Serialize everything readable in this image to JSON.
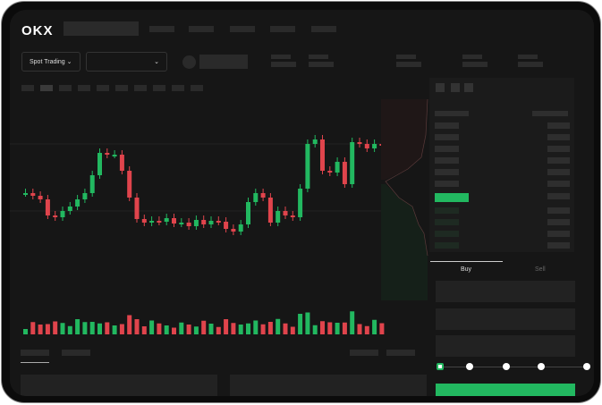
{
  "brand": {
    "logo": "OKX"
  },
  "toolbar": {
    "market_select": "Spot Trading",
    "chevron": "chevron-down-icon"
  },
  "trade": {
    "buy_tab": "Buy",
    "sell_tab": "Sell",
    "leverage_steps": 5,
    "selected_step": 0
  },
  "colors": {
    "up": "#22b860",
    "down": "#e0444c",
    "bg": "#161616"
  },
  "chart_data": {
    "type": "candlestick",
    "closes": [
      95,
      92,
      88,
      70,
      68,
      75,
      80,
      88,
      95,
      115,
      140,
      138,
      138,
      120,
      90,
      66,
      62,
      64,
      63,
      67,
      61,
      62,
      58,
      65,
      60,
      64,
      63,
      55,
      52,
      60,
      85,
      95,
      90,
      62,
      75,
      70,
      68,
      100,
      150,
      155,
      120,
      118,
      130,
      105,
      152,
      150,
      145,
      150,
      148
    ]
  }
}
